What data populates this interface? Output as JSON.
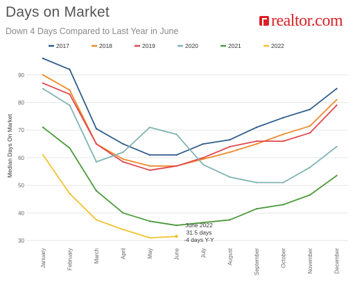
{
  "header": {
    "title": "Days on Market",
    "subtitle": "Down 4 Days Compared to Last Year in June",
    "logo_text": "realtor.com"
  },
  "chart_data": {
    "type": "line",
    "title": "Days on Market",
    "subtitle": "Down 4 Days Compared to Last Year in June",
    "xlabel": "",
    "ylabel": "Median Days On Market",
    "ylim": [
      29,
      97
    ],
    "yticks": [
      30,
      40,
      50,
      60,
      70,
      80,
      90
    ],
    "grid": "horizontal",
    "legend_position": "top",
    "categories": [
      "January",
      "February",
      "March",
      "April",
      "May",
      "June",
      "July",
      "August",
      "September",
      "October",
      "November",
      "December"
    ],
    "series": [
      {
        "name": "2017",
        "color": "#2e5c8a",
        "values": [
          96,
          92,
          70.5,
          65,
          61,
          61,
          65,
          66.5,
          71,
          74.5,
          77.5,
          85
        ]
      },
      {
        "name": "2018",
        "color": "#ee8a2a",
        "values": [
          90,
          84.5,
          65,
          59.5,
          57,
          57,
          59.5,
          62,
          65,
          68.5,
          71.5,
          81
        ]
      },
      {
        "name": "2019",
        "color": "#e0484c",
        "values": [
          87,
          83,
          65,
          58.5,
          55.5,
          57,
          60,
          64,
          66,
          66,
          69,
          79
        ]
      },
      {
        "name": "2020",
        "color": "#7fb4b2",
        "values": [
          85,
          79,
          58.5,
          62,
          71,
          68.5,
          57.5,
          53,
          51,
          51,
          56.5,
          64
        ]
      },
      {
        "name": "2021",
        "color": "#4a9a3a",
        "values": [
          71,
          63.5,
          48,
          40,
          37,
          35.5,
          36.5,
          37.5,
          41.5,
          43,
          46.5,
          53.5
        ]
      },
      {
        "name": "2022",
        "color": "#f2c22e",
        "values": [
          61,
          47,
          37.5,
          34,
          31,
          31.5,
          null,
          null,
          null,
          null,
          null,
          null
        ]
      }
    ],
    "annotation": {
      "lines": [
        "June 2022",
        "31.5 days",
        "-4 days Y-Y"
      ],
      "series": "2022",
      "category": "June",
      "value": 31.5
    }
  }
}
